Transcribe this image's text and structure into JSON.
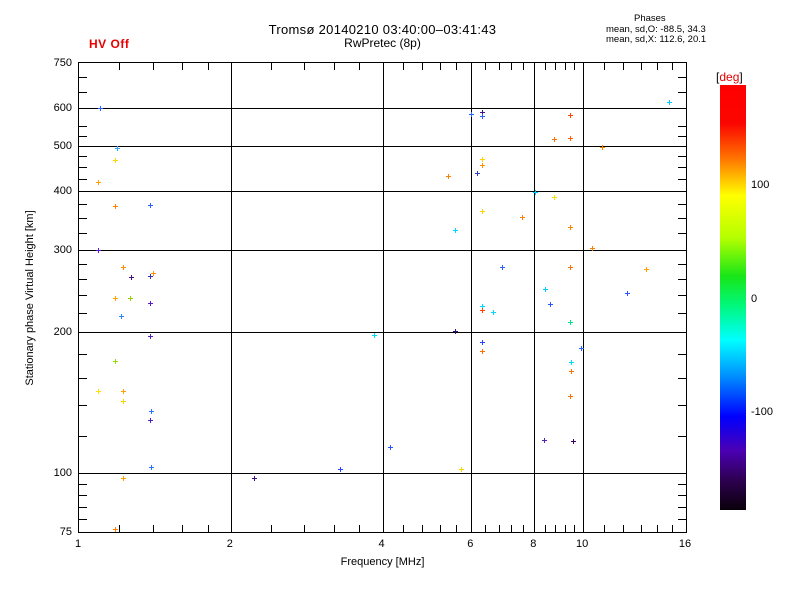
{
  "header": {
    "hv_status": "HV Off",
    "hv_color": "#e80000",
    "title_line1": "Tromsø 20140210 03:40:00–03:41:43",
    "title_line2": "RwPretec (8p)",
    "phases_label": "Phases",
    "phases_mean_o": "mean, sd,O: -88.5, 34.3",
    "phases_mean_x": "mean, sd,X: 112.6, 20.1"
  },
  "chart_data": {
    "type": "scatter",
    "title": "Tromsø 20140210 03:40:00–03:41:43 RwPretec (8p)",
    "xlabel": "Frequency [MHz]",
    "ylabel": "Stationary phase Virtual Height [km]",
    "xscale": "log",
    "yscale": "log",
    "xlim": [
      1,
      16
    ],
    "ylim": [
      75,
      750
    ],
    "grid": true,
    "grid_x": [
      2,
      4,
      6,
      8,
      10
    ],
    "grid_y": [
      100,
      200,
      300,
      400,
      500,
      600
    ],
    "x_major_ticks": [
      {
        "v": 1,
        "label": "1"
      },
      {
        "v": 2,
        "label": "2"
      },
      {
        "v": 4,
        "label": "4"
      },
      {
        "v": 6,
        "label": "6"
      },
      {
        "v": 8,
        "label": "8"
      },
      {
        "v": 10,
        "label": "10"
      },
      {
        "v": 16,
        "label": "16"
      }
    ],
    "x_minor_ticks": [
      1.2,
      1.4,
      1.6,
      1.8,
      2.4,
      2.8,
      3.2,
      3.6,
      4.4,
      4.8,
      5.2,
      5.6,
      6.4,
      6.8,
      7.2,
      7.6,
      8.4,
      8.8,
      9.2,
      9.6,
      11,
      12,
      13,
      14,
      15
    ],
    "y_major_ticks": [
      {
        "v": 750,
        "label": "750"
      },
      {
        "v": 600,
        "label": "600"
      },
      {
        "v": 500,
        "label": "500"
      },
      {
        "v": 400,
        "label": "400"
      },
      {
        "v": 300,
        "label": "300"
      },
      {
        "v": 200,
        "label": "200"
      },
      {
        "v": 100,
        "label": "100"
      },
      {
        "v": 75,
        "label": "75"
      }
    ],
    "y_minor_ticks": [
      700,
      650,
      550,
      525,
      475,
      450,
      425,
      375,
      350,
      325,
      280,
      260,
      240,
      220,
      180,
      160,
      140,
      120,
      95,
      90,
      85,
      80
    ],
    "points_format": [
      "frequency_MHz",
      "virtual_height_km",
      "phase_color"
    ],
    "points": [
      [
        1.1,
        600,
        "#2962ff"
      ],
      [
        1.19,
        495,
        "#29a8ff"
      ],
      [
        1.18,
        466,
        "#ffd300"
      ],
      [
        1.09,
        419,
        "#ffa000"
      ],
      [
        1.18,
        372,
        "#ff8000"
      ],
      [
        1.38,
        374,
        "#2962ff"
      ],
      [
        1.09,
        300,
        "#5a18c8"
      ],
      [
        1.22,
        275,
        "#ff8c00"
      ],
      [
        1.27,
        262,
        "#45108a"
      ],
      [
        1.4,
        268,
        "#ff9000"
      ],
      [
        1.38,
        263,
        "#3a30b0"
      ],
      [
        1.18,
        237,
        "#ffa000"
      ],
      [
        1.26,
        237,
        "#9acd00"
      ],
      [
        1.38,
        231,
        "#5a18c8"
      ],
      [
        1.21,
        217,
        "#2986ff"
      ],
      [
        1.38,
        196,
        "#5020c0"
      ],
      [
        1.18,
        174,
        "#8ae000"
      ],
      [
        1.09,
        150,
        "#ffe000"
      ],
      [
        1.22,
        150,
        "#ffa000"
      ],
      [
        1.22,
        143,
        "#ffd300"
      ],
      [
        1.39,
        136,
        "#2973ff"
      ],
      [
        1.38,
        130,
        "#5020c0"
      ],
      [
        1.39,
        103,
        "#2973ff"
      ],
      [
        1.22,
        98,
        "#ffa000"
      ],
      [
        1.18,
        76,
        "#ff8000"
      ],
      [
        2.22,
        98,
        "#38108a"
      ],
      [
        3.3,
        102,
        "#2946ff"
      ],
      [
        3.85,
        197,
        "#00d8ff"
      ],
      [
        4.13,
        114,
        "#2955ff"
      ],
      [
        5.57,
        201,
        "#2a1070"
      ],
      [
        5.73,
        102,
        "#ffd300"
      ],
      [
        5.39,
        431,
        "#ff8000"
      ],
      [
        5.57,
        330,
        "#00d8ff"
      ],
      [
        6.0,
        584,
        "#2962ff"
      ],
      [
        6.3,
        590,
        "#45108a"
      ],
      [
        6.31,
        578,
        "#2962ff"
      ],
      [
        8.77,
        516,
        "#ff7000"
      ],
      [
        6.3,
        467,
        "#ffd300"
      ],
      [
        6.31,
        455,
        "#ff9000"
      ],
      [
        6.15,
        437,
        "#2a40c0"
      ],
      [
        8.03,
        398,
        "#00c8ff"
      ],
      [
        8.77,
        388,
        "#ffe000"
      ],
      [
        6.31,
        363,
        "#ffd300"
      ],
      [
        7.55,
        352,
        "#ff8000"
      ],
      [
        6.89,
        276,
        "#2962ff"
      ],
      [
        6.31,
        227,
        "#00dcff"
      ],
      [
        6.31,
        223,
        "#ff4500"
      ],
      [
        6.62,
        221,
        "#00dcff"
      ],
      [
        6.31,
        191,
        "#2946ff"
      ],
      [
        6.31,
        182,
        "#ff7000"
      ],
      [
        8.39,
        247,
        "#00c8ff"
      ],
      [
        8.61,
        230,
        "#2955ff"
      ],
      [
        9.4,
        580,
        "#ff4500"
      ],
      [
        9.4,
        520,
        "#ff6000"
      ],
      [
        10.88,
        496,
        "#ff8000"
      ],
      [
        9.41,
        336,
        "#ff8000"
      ],
      [
        10.4,
        302,
        "#ff8000"
      ],
      [
        9.41,
        275,
        "#ff7000"
      ],
      [
        12.2,
        243,
        "#2955ff"
      ],
      [
        9.42,
        210,
        "#00e687"
      ],
      [
        9.9,
        185,
        "#2962ff"
      ],
      [
        9.45,
        173,
        "#00dcff"
      ],
      [
        9.45,
        165,
        "#ff7000"
      ],
      [
        9.43,
        146,
        "#ff7000"
      ],
      [
        8.35,
        118,
        "#5020c0"
      ],
      [
        9.55,
        117,
        "#38006b"
      ],
      [
        14.8,
        618,
        "#00c8ff"
      ],
      [
        13.3,
        273,
        "#ffa000"
      ]
    ],
    "colorbar": {
      "bracket_open": "[",
      "label": "deg",
      "bracket_close": "]",
      "label_color": "#e80000",
      "range": [
        187,
        -187
      ],
      "ticks": [
        {
          "v": 100,
          "label": "100"
        },
        {
          "v": 0,
          "label": "0"
        },
        {
          "v": -100,
          "label": "-100"
        }
      ],
      "gradient": [
        {
          "pos": 0,
          "color": "#ff0000"
        },
        {
          "pos": 9,
          "color": "#fb0500"
        },
        {
          "pos": 17,
          "color": "#ff7000"
        },
        {
          "pos": 26,
          "color": "#ffff00"
        },
        {
          "pos": 36,
          "color": "#b4ff00"
        },
        {
          "pos": 45,
          "color": "#18e618"
        },
        {
          "pos": 52,
          "color": "#00f87d"
        },
        {
          "pos": 60,
          "color": "#00ffff"
        },
        {
          "pos": 68,
          "color": "#0096ff"
        },
        {
          "pos": 78,
          "color": "#0000ff"
        },
        {
          "pos": 86,
          "color": "#4b00b4"
        },
        {
          "pos": 93,
          "color": "#2d0050"
        },
        {
          "pos": 100,
          "color": "#0a000a"
        }
      ]
    }
  }
}
